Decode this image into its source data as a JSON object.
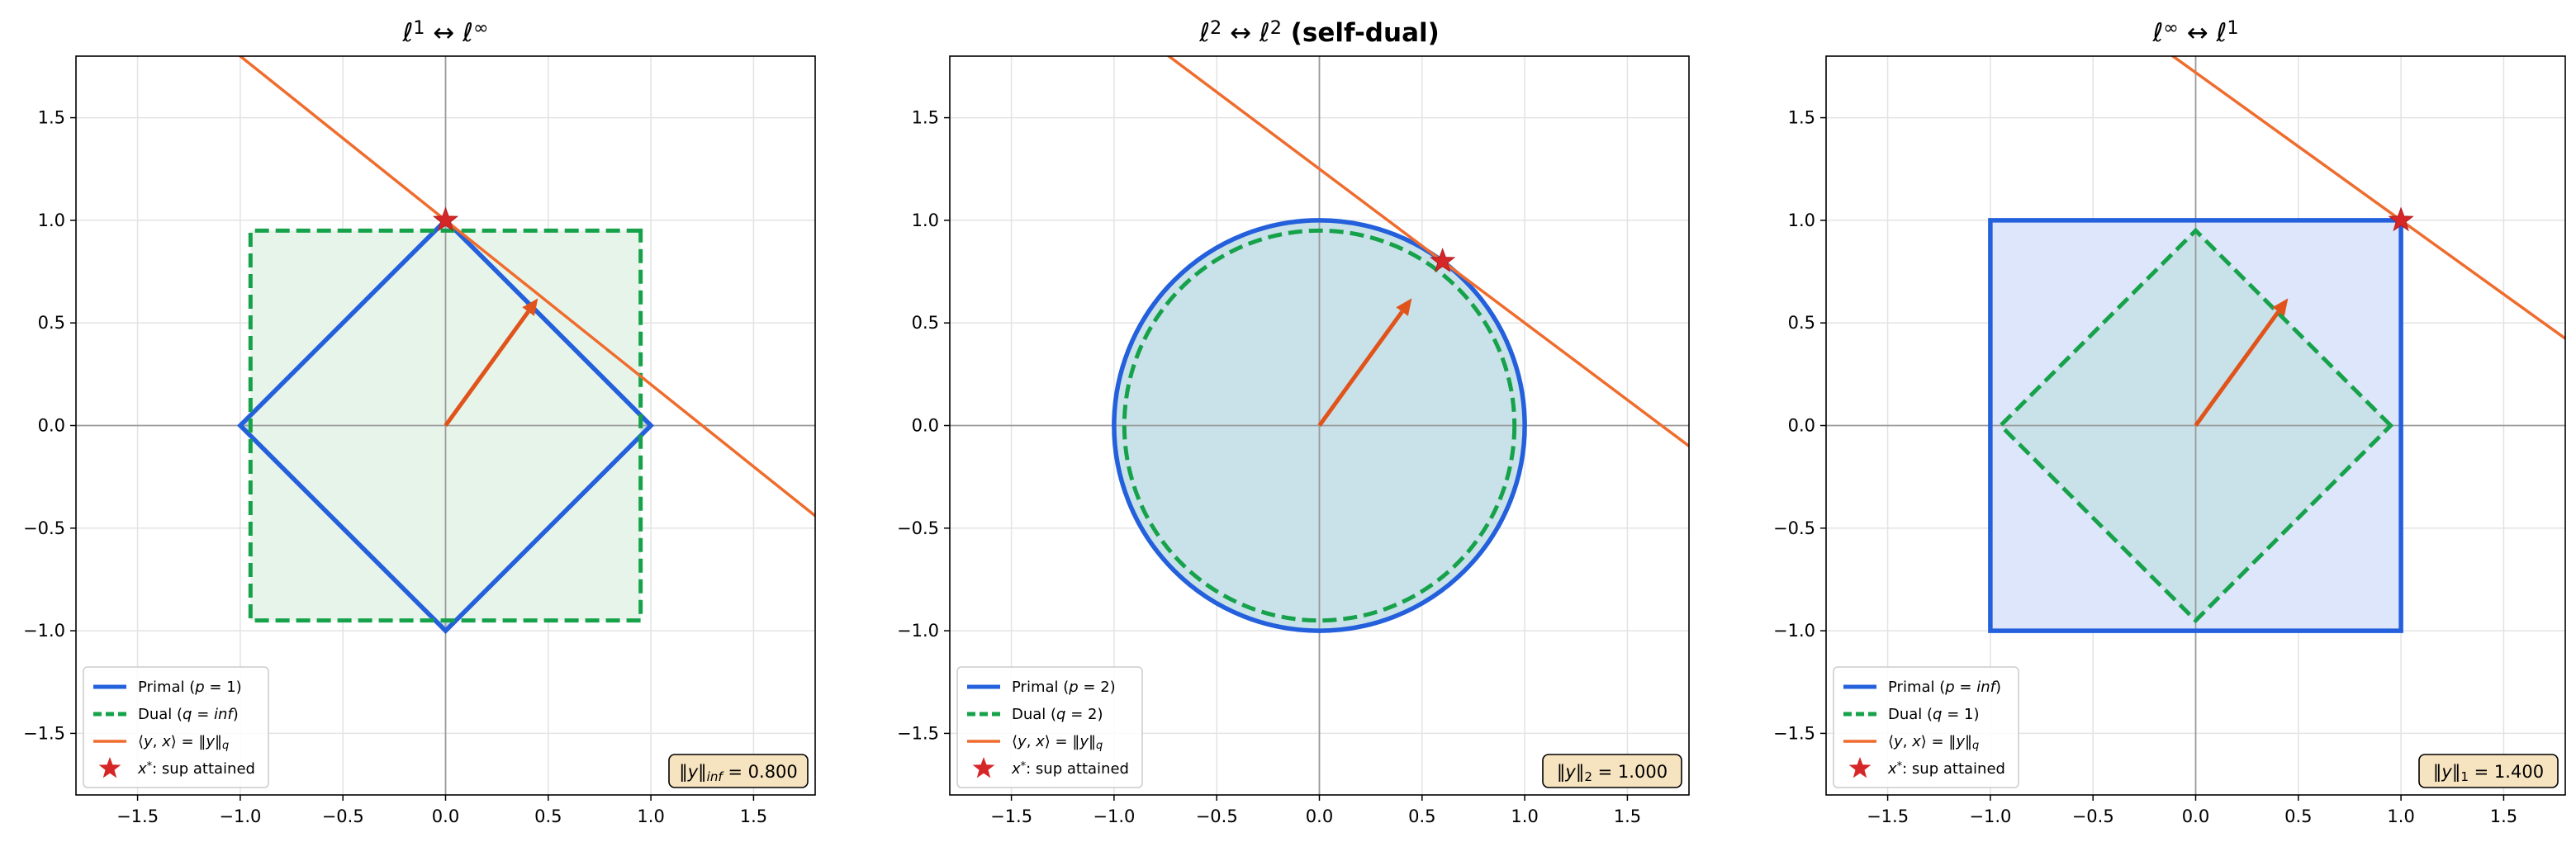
{
  "colors": {
    "primary": "#2460dc",
    "dual": "#16a24a",
    "support_line": "#ef6c2d",
    "arrow": "#e0541b",
    "star": "#d62728",
    "badge_bg": "#f6e3bf",
    "grid": "#e3e3e3",
    "axis_line": "#9a9a9a"
  },
  "chart_data": [
    {
      "type": "line",
      "title": "ℓ¹ ↔ ℓ^∞",
      "title_parts": [
        {
          "text": "ℓ",
          "italic": true
        },
        {
          "text": "1",
          "sup": true
        },
        {
          "text": " ↔ "
        },
        {
          "text": "ℓ",
          "italic": true
        },
        {
          "text": "∞",
          "sup": true
        }
      ],
      "xlim": [
        -1.8,
        1.8
      ],
      "ylim": [
        -1.8,
        1.8
      ],
      "xticks": [
        -1.5,
        -1.0,
        -0.5,
        0.0,
        0.5,
        1.0,
        1.5
      ],
      "yticks": [
        -1.5,
        -1.0,
        -0.5,
        0.0,
        0.5,
        1.0,
        1.5
      ],
      "xtick_labels": [
        "−1.5",
        "−1.0",
        "−0.5",
        "0.0",
        "0.5",
        "1.0",
        "1.5"
      ],
      "ytick_labels": [
        "−1.5",
        "−1.0",
        "−0.5",
        "0.0",
        "0.5",
        "1.0",
        "1.5"
      ],
      "grid": true,
      "series": [
        {
          "name": "Primal (p = 1)",
          "kind": "primal",
          "shape": "diamond",
          "radius": 1.0,
          "fill": "#c9e1e9"
        },
        {
          "name": "Dual (q = inf)",
          "kind": "dual",
          "shape": "square",
          "radius": 0.95,
          "fill": "#e7f4ea"
        },
        {
          "name": "⟨y, x⟩ = ‖y‖_q",
          "kind": "support_line",
          "slope": -0.8,
          "intercept": 1.0
        },
        {
          "name": "x*: sup attained",
          "kind": "star",
          "x": 0.0,
          "y": 1.0
        }
      ],
      "arrow": {
        "x": 0.0,
        "y": 0.0,
        "dx": 0.45,
        "dy": 0.62
      },
      "legend_position": "lower left",
      "legend": [
        {
          "key": "primal",
          "parts": [
            {
              "text": "Primal ("
            },
            {
              "text": "p",
              "italic": true
            },
            {
              "text": " = 1)"
            }
          ]
        },
        {
          "key": "dual",
          "parts": [
            {
              "text": "Dual ("
            },
            {
              "text": "q",
              "italic": true
            },
            {
              "text": " = "
            },
            {
              "text": "inf",
              "italic": true
            },
            {
              "text": ")"
            }
          ]
        },
        {
          "key": "line",
          "parts": [
            {
              "text": "⟨"
            },
            {
              "text": "y",
              "italic": true
            },
            {
              "text": ", "
            },
            {
              "text": "x",
              "italic": true
            },
            {
              "text": "⟩ = ‖"
            },
            {
              "text": "y",
              "italic": true
            },
            {
              "text": "‖"
            },
            {
              "text": "q",
              "sub": true,
              "italic": true
            }
          ]
        },
        {
          "key": "star",
          "parts": [
            {
              "text": "x",
              "italic": true
            },
            {
              "text": "*",
              "sup": true
            },
            {
              "text": ": sup attained"
            }
          ]
        }
      ],
      "badge_position": "lower right",
      "badge_parts": [
        {
          "text": "‖"
        },
        {
          "text": "y",
          "italic": true
        },
        {
          "text": "‖"
        },
        {
          "text": "inf",
          "sub": true,
          "italic": true
        },
        {
          "text": " = 0.800"
        }
      ],
      "badge_value": "0.800"
    },
    {
      "type": "line",
      "title": "ℓ² ↔ ℓ² (self-dual)",
      "title_parts": [
        {
          "text": "ℓ",
          "italic": true
        },
        {
          "text": "2",
          "sup": true
        },
        {
          "text": " ↔ "
        },
        {
          "text": "ℓ",
          "italic": true
        },
        {
          "text": "2",
          "sup": true
        },
        {
          "text": " (self-dual)",
          "bold": true
        }
      ],
      "xlim": [
        -1.8,
        1.8
      ],
      "ylim": [
        -1.8,
        1.8
      ],
      "xticks": [
        -1.5,
        -1.0,
        -0.5,
        0.0,
        0.5,
        1.0,
        1.5
      ],
      "yticks": [
        -1.5,
        -1.0,
        -0.5,
        0.0,
        0.5,
        1.0,
        1.5
      ],
      "xtick_labels": [
        "−1.5",
        "−1.0",
        "−0.5",
        "0.0",
        "0.5",
        "1.0",
        "1.5"
      ],
      "ytick_labels": [
        "−1.5",
        "−1.0",
        "−0.5",
        "0.0",
        "0.5",
        "1.0",
        "1.5"
      ],
      "grid": true,
      "series": [
        {
          "name": "Primal (p = 2)",
          "kind": "primal",
          "shape": "circle",
          "radius": 1.0,
          "fill": "#c9e1e9"
        },
        {
          "name": "Dual (q = 2)",
          "kind": "dual",
          "shape": "circle",
          "radius": 0.95,
          "fill": "none"
        },
        {
          "name": "⟨y, x⟩ = ‖y‖_q",
          "kind": "support_line",
          "slope": -0.75,
          "intercept": 1.25
        },
        {
          "name": "x*: sup attained",
          "kind": "star",
          "x": 0.6,
          "y": 0.8
        }
      ],
      "arrow": {
        "x": 0.0,
        "y": 0.0,
        "dx": 0.45,
        "dy": 0.62
      },
      "legend_position": "lower left",
      "legend": [
        {
          "key": "primal",
          "parts": [
            {
              "text": "Primal ("
            },
            {
              "text": "p",
              "italic": true
            },
            {
              "text": " = 2)"
            }
          ]
        },
        {
          "key": "dual",
          "parts": [
            {
              "text": "Dual ("
            },
            {
              "text": "q",
              "italic": true
            },
            {
              "text": " = 2)"
            }
          ]
        },
        {
          "key": "line",
          "parts": [
            {
              "text": "⟨"
            },
            {
              "text": "y",
              "italic": true
            },
            {
              "text": ", "
            },
            {
              "text": "x",
              "italic": true
            },
            {
              "text": "⟩ = ‖"
            },
            {
              "text": "y",
              "italic": true
            },
            {
              "text": "‖"
            },
            {
              "text": "q",
              "sub": true,
              "italic": true
            }
          ]
        },
        {
          "key": "star",
          "parts": [
            {
              "text": "x",
              "italic": true
            },
            {
              "text": "*",
              "sup": true
            },
            {
              "text": ": sup attained"
            }
          ]
        }
      ],
      "badge_position": "lower right",
      "badge_parts": [
        {
          "text": "‖"
        },
        {
          "text": "y",
          "italic": true
        },
        {
          "text": "‖"
        },
        {
          "text": "2",
          "sub": true
        },
        {
          "text": " = 1.000"
        }
      ],
      "badge_value": "1.000"
    },
    {
      "type": "line",
      "title": "ℓ^∞ ↔ ℓ¹",
      "title_parts": [
        {
          "text": "ℓ",
          "italic": true
        },
        {
          "text": "∞",
          "sup": true
        },
        {
          "text": " ↔ "
        },
        {
          "text": "ℓ",
          "italic": true
        },
        {
          "text": "1",
          "sup": true
        }
      ],
      "xlim": [
        -1.8,
        1.8
      ],
      "ylim": [
        -1.8,
        1.8
      ],
      "xticks": [
        -1.5,
        -1.0,
        -0.5,
        0.0,
        0.5,
        1.0,
        1.5
      ],
      "yticks": [
        -1.5,
        -1.0,
        -0.5,
        0.0,
        0.5,
        1.0,
        1.5
      ],
      "xtick_labels": [
        "−1.5",
        "−1.0",
        "−0.5",
        "0.0",
        "0.5",
        "1.0",
        "1.5"
      ],
      "ytick_labels": [
        "−1.5",
        "−1.0",
        "−0.5",
        "0.0",
        "0.5",
        "1.0",
        "1.5"
      ],
      "grid": true,
      "series": [
        {
          "name": "Primal (p = inf)",
          "kind": "primal",
          "shape": "square",
          "radius": 1.0,
          "fill": "#dde6fa"
        },
        {
          "name": "Dual (q = 1)",
          "kind": "dual",
          "shape": "diamond",
          "radius": 0.95,
          "fill": "#c9e1e9"
        },
        {
          "name": "⟨y, x⟩ = ‖y‖_q",
          "kind": "support_line",
          "slope": -0.72,
          "intercept": 1.72
        },
        {
          "name": "x*: sup attained",
          "kind": "star",
          "x": 1.0,
          "y": 1.0
        }
      ],
      "arrow": {
        "x": 0.0,
        "y": 0.0,
        "dx": 0.45,
        "dy": 0.62
      },
      "legend_position": "lower left",
      "legend": [
        {
          "key": "primal",
          "parts": [
            {
              "text": "Primal ("
            },
            {
              "text": "p",
              "italic": true
            },
            {
              "text": " = "
            },
            {
              "text": "inf",
              "italic": true
            },
            {
              "text": ")"
            }
          ]
        },
        {
          "key": "dual",
          "parts": [
            {
              "text": "Dual ("
            },
            {
              "text": "q",
              "italic": true
            },
            {
              "text": " = 1)"
            }
          ]
        },
        {
          "key": "line",
          "parts": [
            {
              "text": "⟨"
            },
            {
              "text": "y",
              "italic": true
            },
            {
              "text": ", "
            },
            {
              "text": "x",
              "italic": true
            },
            {
              "text": "⟩ = ‖"
            },
            {
              "text": "y",
              "italic": true
            },
            {
              "text": "‖"
            },
            {
              "text": "q",
              "sub": true,
              "italic": true
            }
          ]
        },
        {
          "key": "star",
          "parts": [
            {
              "text": "x",
              "italic": true
            },
            {
              "text": "*",
              "sup": true
            },
            {
              "text": ": sup attained"
            }
          ]
        }
      ],
      "badge_position": "lower right",
      "badge_parts": [
        {
          "text": "‖"
        },
        {
          "text": "y",
          "italic": true
        },
        {
          "text": "‖"
        },
        {
          "text": "1",
          "sub": true
        },
        {
          "text": " = 1.400"
        }
      ],
      "badge_value": "1.400"
    }
  ]
}
